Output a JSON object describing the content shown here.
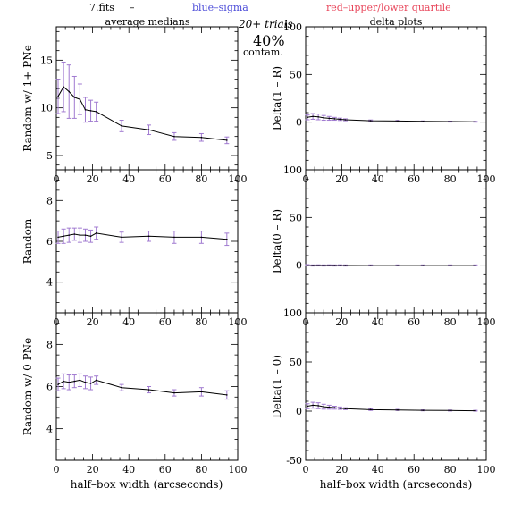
{
  "header": {
    "file": "7.fits",
    "dash": "–",
    "legend_blue": "blue–sigma",
    "legend_red": "red–upper/lower quartile",
    "trials": "20+ trials",
    "contam_pct": "40%",
    "contam_label": "contam.",
    "left_title": "average medians",
    "right_title": "delta plots",
    "xlabel": "half–box width (arcseconds)"
  },
  "colors": {
    "line": "#000000",
    "sigma": "#4b4bd8",
    "quartile": "#e8455a",
    "errorbar": "#a07ad0"
  },
  "chart_data": [
    {
      "type": "line",
      "panel": "top-left",
      "ylabel": "Random w/ 1+ PNe",
      "xlim": [
        0,
        100
      ],
      "ylim": [
        3.5,
        18.5
      ],
      "xticks": [
        0,
        20,
        40,
        60,
        80,
        100
      ],
      "yticks": [
        5,
        10,
        15
      ],
      "x": [
        1,
        4,
        7,
        10,
        13,
        16,
        19,
        22,
        36,
        51,
        65,
        80,
        94
      ],
      "y": [
        11.2,
        12.2,
        11.7,
        11.1,
        10.9,
        9.8,
        9.7,
        9.6,
        8.1,
        7.7,
        7.0,
        6.9,
        6.6
      ],
      "err": [
        1.8,
        2.6,
        2.8,
        2.2,
        1.6,
        1.3,
        1.1,
        1.0,
        0.6,
        0.5,
        0.4,
        0.4,
        0.35
      ]
    },
    {
      "type": "line",
      "panel": "middle-left",
      "ylabel": "Random",
      "xlim": [
        0,
        100
      ],
      "ylim": [
        2.5,
        9.5
      ],
      "xticks": [
        0,
        20,
        40,
        60,
        80,
        100
      ],
      "yticks": [
        4,
        6,
        8
      ],
      "x": [
        1,
        4,
        7,
        10,
        13,
        16,
        19,
        22,
        36,
        51,
        65,
        80,
        94
      ],
      "y": [
        6.2,
        6.25,
        6.3,
        6.35,
        6.3,
        6.3,
        6.25,
        6.4,
        6.2,
        6.25,
        6.2,
        6.2,
        6.1
      ],
      "err": [
        0.3,
        0.35,
        0.35,
        0.3,
        0.35,
        0.3,
        0.3,
        0.3,
        0.25,
        0.25,
        0.3,
        0.3,
        0.3
      ]
    },
    {
      "type": "line",
      "panel": "bottom-left",
      "ylabel": "Random w/ 0 PNe",
      "xlim": [
        0,
        100
      ],
      "ylim": [
        2.5,
        9.5
      ],
      "xticks": [
        0,
        20,
        40,
        60,
        80,
        100
      ],
      "yticks": [
        4,
        6,
        8
      ],
      "x": [
        1,
        4,
        7,
        10,
        13,
        16,
        19,
        22,
        36,
        51,
        65,
        80,
        94
      ],
      "y": [
        6.1,
        6.25,
        6.2,
        6.25,
        6.3,
        6.2,
        6.15,
        6.3,
        5.95,
        5.85,
        5.7,
        5.75,
        5.6
      ],
      "err": [
        0.3,
        0.35,
        0.35,
        0.3,
        0.3,
        0.3,
        0.3,
        0.2,
        0.15,
        0.15,
        0.15,
        0.2,
        0.2
      ]
    },
    {
      "type": "line",
      "panel": "top-right",
      "ylabel": "Delta(1 – R)",
      "xlim": [
        0,
        100
      ],
      "ylim": [
        -50,
        100
      ],
      "xticks": [
        0,
        20,
        40,
        60,
        80,
        100
      ],
      "yticks": [
        0,
        50,
        100
      ],
      "x": [
        1,
        4,
        7,
        10,
        13,
        16,
        19,
        22,
        36,
        51,
        65,
        80,
        94
      ],
      "y": [
        5,
        6,
        5.5,
        4.5,
        4,
        3.5,
        3,
        2.5,
        1.5,
        1.2,
        0.8,
        0.6,
        0.4
      ],
      "err": [
        2.5,
        3,
        3,
        2.5,
        2,
        1.5,
        1.2,
        1,
        0.8,
        0.6,
        0.5,
        0.5,
        0.4
      ]
    },
    {
      "type": "line",
      "panel": "middle-right",
      "ylabel": "Delta(0 – R)",
      "xlim": [
        0,
        100
      ],
      "ylim": [
        -50,
        100
      ],
      "xticks": [
        0,
        20,
        40,
        60,
        80,
        100
      ],
      "yticks": [
        0,
        50,
        100
      ],
      "x": [
        1,
        4,
        7,
        10,
        13,
        16,
        19,
        22,
        36,
        51,
        65,
        80,
        94
      ],
      "y": [
        0,
        -0.3,
        -0.2,
        -0.3,
        -0.2,
        -0.3,
        -0.2,
        -0.3,
        -0.2,
        -0.2,
        -0.2,
        -0.2,
        -0.2
      ],
      "err": [
        0.6,
        0.6,
        0.6,
        0.6,
        0.6,
        0.6,
        0.6,
        0.6,
        0.5,
        0.5,
        0.5,
        0.5,
        0.5
      ]
    },
    {
      "type": "line",
      "panel": "bottom-right",
      "ylabel": "Delta(1 – 0)",
      "xlim": [
        0,
        100
      ],
      "ylim": [
        -50,
        100
      ],
      "xticks": [
        0,
        20,
        40,
        60,
        80,
        100
      ],
      "yticks": [
        -50,
        0,
        50,
        100
      ],
      "x": [
        1,
        4,
        7,
        10,
        13,
        16,
        19,
        22,
        36,
        51,
        65,
        80,
        94
      ],
      "y": [
        5,
        6,
        5.5,
        4.5,
        4,
        3.5,
        3,
        2.5,
        1.5,
        1.2,
        0.8,
        0.6,
        0.4
      ],
      "err": [
        2.5,
        3,
        3,
        2.5,
        2,
        1.5,
        1.2,
        1,
        0.8,
        0.6,
        0.5,
        0.5,
        0.4
      ]
    }
  ]
}
